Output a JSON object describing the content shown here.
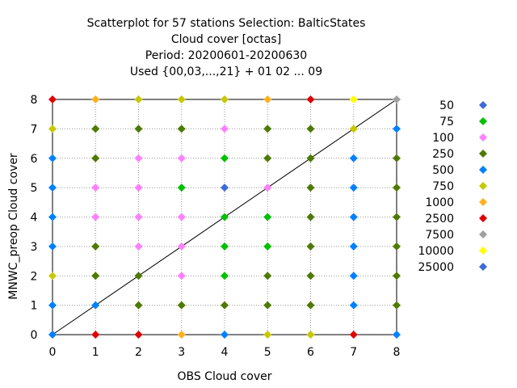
{
  "chart_data": {
    "type": "scatter",
    "title_lines": [
      "Scatterplot for   57 stations Selection: BalticStates",
      "Cloud cover [octas]",
      "Period: 20200601-20200630",
      "Used {00,03,...,21} + 01 02 ... 09"
    ],
    "xlabel": "OBS Cloud cover",
    "ylabel": "MNWC_preop Cloud cover",
    "xlim": [
      0,
      8
    ],
    "ylim": [
      0,
      8
    ],
    "xticks": [
      "0",
      "1",
      "2",
      "3",
      "4",
      "5",
      "6",
      "7",
      "8"
    ],
    "yticks": [
      "0",
      "1",
      "2",
      "3",
      "4",
      "5",
      "6",
      "7",
      "8"
    ],
    "grid": true,
    "diagonal": true,
    "legend_position": "right",
    "legend": [
      {
        "label": "50",
        "color": "#3d6bd9"
      },
      {
        "label": "75",
        "color": "#00c000"
      },
      {
        "label": "100",
        "color": "#ff80ff"
      },
      {
        "label": "250",
        "color": "#4d7a00"
      },
      {
        "label": "500",
        "color": "#0080ff"
      },
      {
        "label": "750",
        "color": "#c8c800"
      },
      {
        "label": "1000",
        "color": "#ffb020"
      },
      {
        "label": "2500",
        "color": "#e00000"
      },
      {
        "label": "7500",
        "color": "#a0a0a0"
      },
      {
        "label": "10000",
        "color": "#ffff00"
      },
      {
        "label": "25000",
        "color": "#3d6bd9"
      }
    ],
    "grid_colors": [
      [
        "500",
        "2500",
        "2500",
        "1000",
        "500",
        "750",
        "750",
        "2500",
        "500"
      ],
      [
        "500",
        "500",
        "250",
        "250",
        "250",
        "250",
        "250",
        "500",
        "250"
      ],
      [
        "750",
        "250",
        "250",
        "100",
        "75",
        "250",
        "250",
        "500",
        "250"
      ],
      [
        "500",
        "250",
        "100",
        "100",
        "75",
        "75",
        "250",
        "500",
        "250"
      ],
      [
        "500",
        "100",
        "100",
        "100",
        "75",
        "75",
        "250",
        "500",
        "250"
      ],
      [
        "500",
        "100",
        "100",
        "75",
        "50",
        "100",
        "250",
        "500",
        "250"
      ],
      [
        "500",
        "250",
        "100",
        "100",
        "75",
        "250",
        "250",
        "500",
        "250"
      ],
      [
        "750",
        "250",
        "250",
        "250",
        "100",
        "250",
        "250",
        "750",
        "500"
      ],
      [
        "2500",
        "1000",
        "750",
        "750",
        "750",
        "1000",
        "2500",
        "10000",
        "7500"
      ]
    ]
  }
}
